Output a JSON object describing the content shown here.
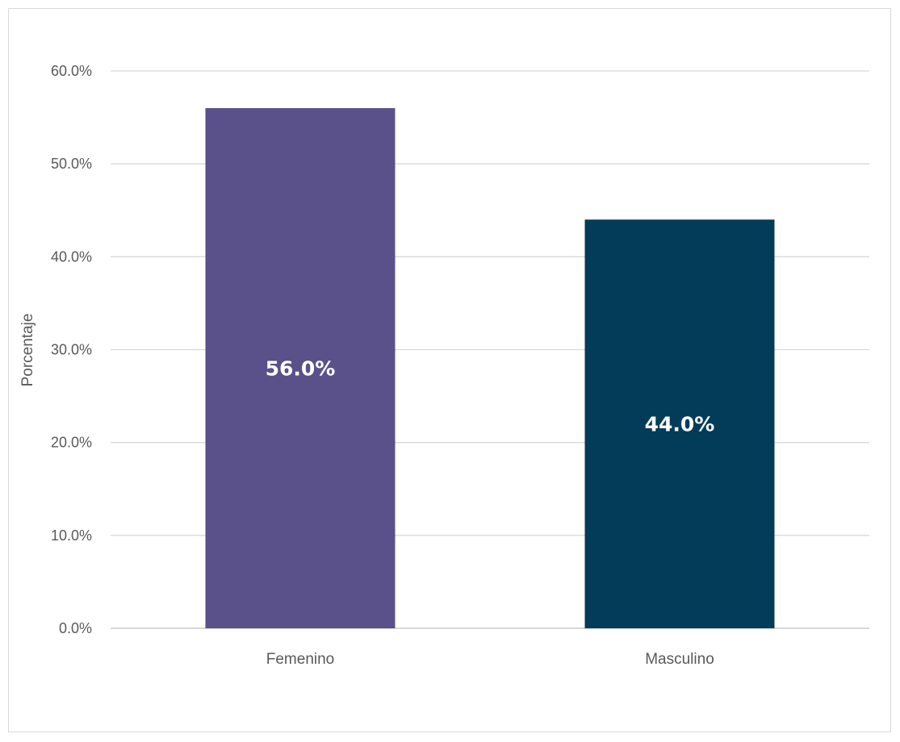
{
  "chart_data": {
    "type": "bar",
    "title": "",
    "xlabel": "",
    "ylabel": "Porcentaje",
    "categories": [
      "Femenino",
      "Masculino"
    ],
    "values": [
      56.0,
      44.0
    ],
    "data_labels": [
      "56.0%",
      "44.0%"
    ],
    "colors": [
      "#5a508a",
      "#033c58"
    ],
    "ylim": [
      0,
      60
    ],
    "yticks": [
      0,
      10,
      20,
      30,
      40,
      50,
      60
    ],
    "ytick_labels": [
      "0.0%",
      "10.0%",
      "20.0%",
      "30.0%",
      "40.0%",
      "50.0%",
      "60.0%"
    ],
    "grid": true,
    "legend": "none"
  }
}
